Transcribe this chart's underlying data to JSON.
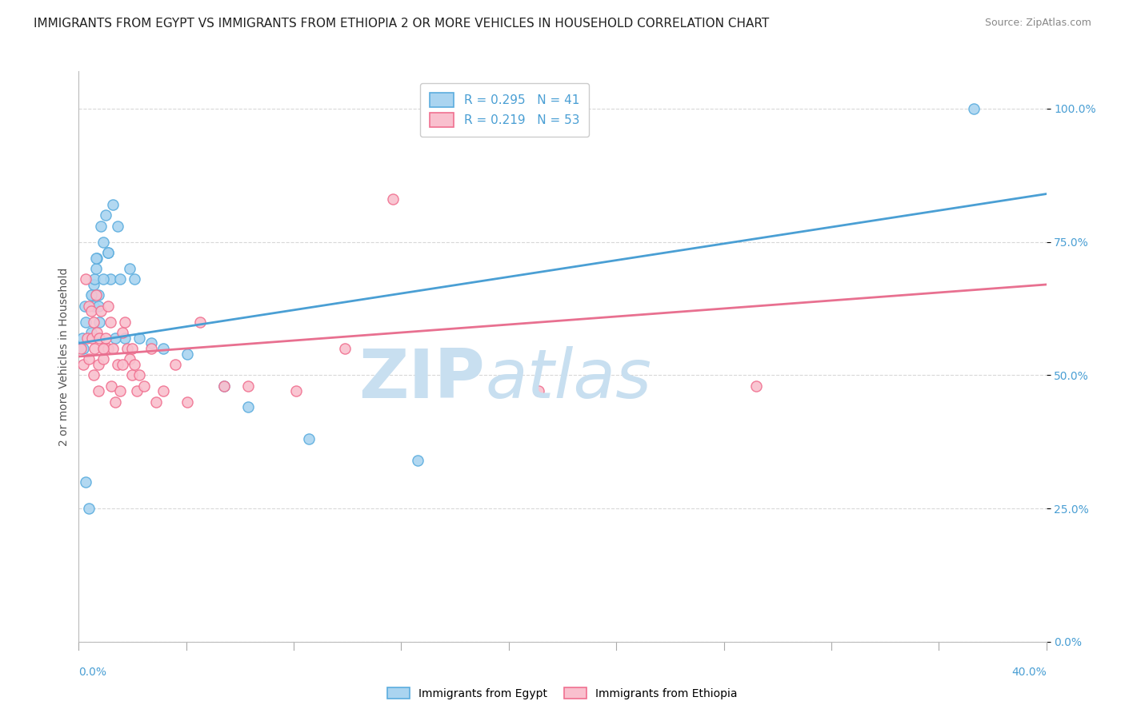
{
  "title": "IMMIGRANTS FROM EGYPT VS IMMIGRANTS FROM ETHIOPIA 2 OR MORE VEHICLES IN HOUSEHOLD CORRELATION CHART",
  "source": "Source: ZipAtlas.com",
  "ylabel": "2 or more Vehicles in Household",
  "ytick_labels": [
    "0.0%",
    "25.0%",
    "50.0%",
    "75.0%",
    "100.0%"
  ],
  "ytick_values": [
    0,
    25,
    50,
    75,
    100
  ],
  "xmin": 0.0,
  "xmax": 40.0,
  "ymin": 0.0,
  "ymax": 107.0,
  "egypt_scatter_color": "#aad4f0",
  "ethiopia_scatter_color": "#f9c0ce",
  "egypt_edge_color": "#5badde",
  "ethiopia_edge_color": "#f07090",
  "egypt_line_color": "#4a9fd4",
  "ethiopia_line_color": "#e87090",
  "egypt_R": 0.295,
  "egypt_N": 41,
  "ethiopia_R": 0.219,
  "ethiopia_N": 53,
  "legend_label_egypt": "Immigrants from Egypt",
  "legend_label_ethiopia": "Immigrants from Ethiopia",
  "egypt_x": [
    0.15,
    0.2,
    0.25,
    0.3,
    0.4,
    0.5,
    0.55,
    0.6,
    0.65,
    0.7,
    0.75,
    0.8,
    0.85,
    0.9,
    1.0,
    1.1,
    1.2,
    1.3,
    1.4,
    1.6,
    1.7,
    1.9,
    2.1,
    2.3,
    2.5,
    3.0,
    3.5,
    4.5,
    6.0,
    7.0,
    9.5,
    14.0,
    37.0,
    0.3,
    0.5,
    0.6,
    0.7,
    0.8,
    1.0,
    1.2,
    1.5
  ],
  "egypt_y": [
    57,
    55,
    63,
    30,
    25,
    58,
    65,
    67,
    68,
    70,
    72,
    65,
    60,
    78,
    75,
    80,
    73,
    68,
    82,
    78,
    68,
    57,
    70,
    68,
    57,
    56,
    55,
    54,
    48,
    44,
    38,
    34,
    100,
    60,
    65,
    63,
    72,
    63,
    68,
    73,
    57
  ],
  "ethiopia_x": [
    0.1,
    0.2,
    0.3,
    0.35,
    0.4,
    0.5,
    0.55,
    0.6,
    0.65,
    0.7,
    0.75,
    0.8,
    0.85,
    0.9,
    1.0,
    1.05,
    1.1,
    1.2,
    1.3,
    1.35,
    1.4,
    1.5,
    1.6,
    1.7,
    1.8,
    1.9,
    2.0,
    2.1,
    2.2,
    2.3,
    2.4,
    2.5,
    2.7,
    3.0,
    3.2,
    3.5,
    4.0,
    4.5,
    5.0,
    6.0,
    7.0,
    9.0,
    11.0,
    13.0,
    19.0,
    28.0,
    0.4,
    0.6,
    0.8,
    1.0,
    1.2,
    1.8,
    2.2
  ],
  "ethiopia_y": [
    55,
    52,
    68,
    57,
    63,
    62,
    57,
    60,
    55,
    65,
    58,
    52,
    57,
    62,
    53,
    55,
    57,
    55,
    60,
    48,
    55,
    45,
    52,
    47,
    58,
    60,
    55,
    53,
    50,
    52,
    47,
    50,
    48,
    55,
    45,
    47,
    52,
    45,
    60,
    48,
    48,
    47,
    55,
    83,
    47,
    48,
    53,
    50,
    47,
    55,
    63,
    52,
    55
  ],
  "egypt_trend_x0": 0.0,
  "egypt_trend_y0": 56.0,
  "egypt_trend_x1": 40.0,
  "egypt_trend_y1": 84.0,
  "ethiopia_trend_x0": 0.0,
  "ethiopia_trend_y0": 53.5,
  "ethiopia_trend_x1": 40.0,
  "ethiopia_trend_y1": 67.0,
  "background_color": "#ffffff",
  "grid_color": "#d8d8d8",
  "watermark_zip": "ZIP",
  "watermark_atlas": "atlas",
  "watermark_color": "#c8dff0",
  "title_fontsize": 11,
  "axis_label_fontsize": 10,
  "tick_fontsize": 10,
  "source_fontsize": 9
}
